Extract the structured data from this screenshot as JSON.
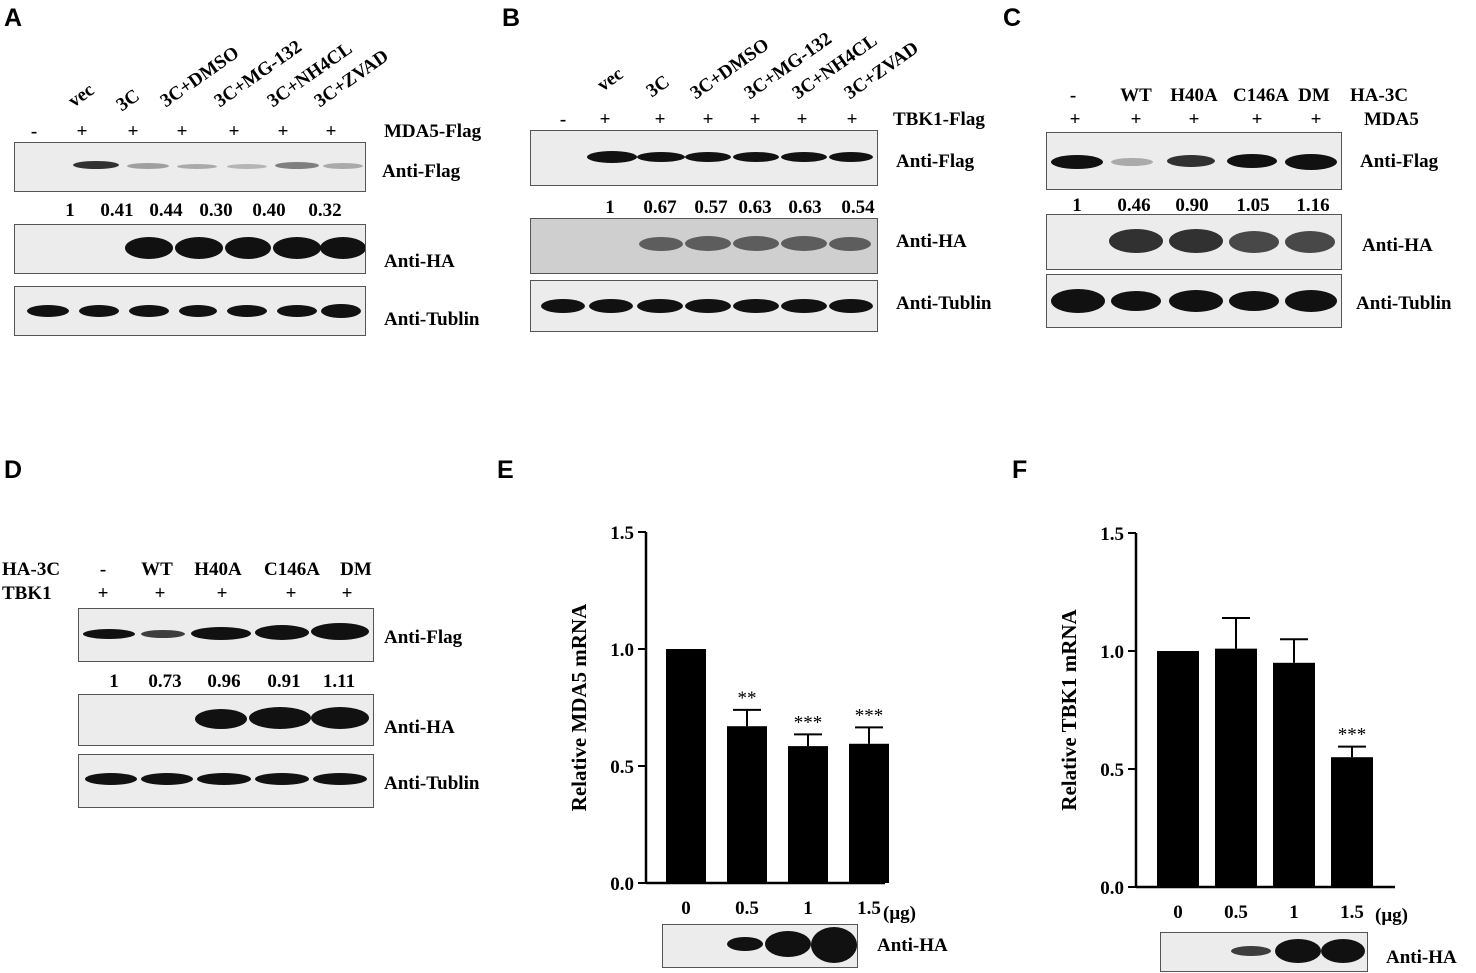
{
  "panels": {
    "A": {
      "label": "A",
      "lanes": [
        "",
        "vec",
        "3C",
        "3C+DMSO",
        "3C+MG-132",
        "3C+NH4CL",
        "3C+ZVAD"
      ],
      "signs": [
        "-",
        "+",
        "+",
        "+",
        "+",
        "+",
        "+"
      ],
      "construct": "MDA5-Flag",
      "blots": [
        "Anti-Flag",
        "Anti-HA",
        "Anti-Tublin"
      ],
      "quant": [
        "1",
        "0.41",
        "0.44",
        "0.30",
        "0.40",
        "0.32"
      ]
    },
    "B": {
      "label": "B",
      "lanes": [
        "",
        "vec",
        "3C",
        "3C+DMSO",
        "3C+MG-132",
        "3C+NH4CL",
        "3C+ZVAD"
      ],
      "signs": [
        "-",
        "+",
        "+",
        "+",
        "+",
        "+",
        "+"
      ],
      "construct": "TBK1-Flag",
      "blots": [
        "Anti-Flag",
        "Anti-HA",
        "Anti-Tublin"
      ],
      "quant": [
        "1",
        "0.67",
        "0.57",
        "0.63",
        "0.63",
        "0.54"
      ]
    },
    "C": {
      "label": "C",
      "lanes": [
        "-",
        "WT",
        "H40A",
        "C146A",
        "DM"
      ],
      "row_label": "HA-3C",
      "signs": [
        "+",
        "+",
        "+",
        "+",
        "+"
      ],
      "construct": "MDA5",
      "blots": [
        "Anti-Flag",
        "Anti-HA",
        "Anti-Tublin"
      ],
      "quant": [
        "1",
        "0.46",
        "0.90",
        "1.05",
        "1.16"
      ]
    },
    "D": {
      "label": "D",
      "row1_label": "HA-3C",
      "lanes": [
        "-",
        "WT",
        "H40A",
        "C146A",
        "DM"
      ],
      "row2_label": "TBK1",
      "signs": [
        "+",
        "+",
        "+",
        "+",
        "+"
      ],
      "blots": [
        "Anti-Flag",
        "Anti-HA",
        "Anti-Tublin"
      ],
      "quant": [
        "1",
        "0.73",
        "0.96",
        "0.91",
        "1.11"
      ]
    },
    "E": {
      "label": "E",
      "blot": "Anti-HA",
      "unit": "(μg)"
    },
    "F": {
      "label": "F",
      "blot": "Anti-HA",
      "unit": "(μg)"
    }
  },
  "chart_data": [
    {
      "type": "bar",
      "panel": "E",
      "categories": [
        "0",
        "0.5",
        "1",
        "1.5"
      ],
      "values": [
        1.0,
        0.67,
        0.585,
        0.595
      ],
      "errors": [
        0,
        0.07,
        0.05,
        0.07
      ],
      "significance": [
        "",
        "**",
        "***",
        "***"
      ],
      "title": "",
      "xlabel": "",
      "ylabel": "Relative MDA5 mRNA",
      "ylim": [
        0,
        1.5
      ],
      "yticks": [
        "0.0",
        "0.5",
        "1.0",
        "1.5"
      ],
      "bar_color": "#000000"
    },
    {
      "type": "bar",
      "panel": "F",
      "categories": [
        "0",
        "0.5",
        "1",
        "1.5"
      ],
      "values": [
        1.0,
        1.01,
        0.95,
        0.55
      ],
      "errors": [
        0,
        0.13,
        0.1,
        0.045
      ],
      "significance": [
        "",
        "",
        "",
        "***"
      ],
      "title": "",
      "xlabel": "",
      "ylabel": "Relative TBK1 mRNA",
      "ylim": [
        0,
        1.5
      ],
      "yticks": [
        "0.0",
        "0.5",
        "1.0",
        "1.5"
      ],
      "bar_color": "#000000"
    }
  ]
}
